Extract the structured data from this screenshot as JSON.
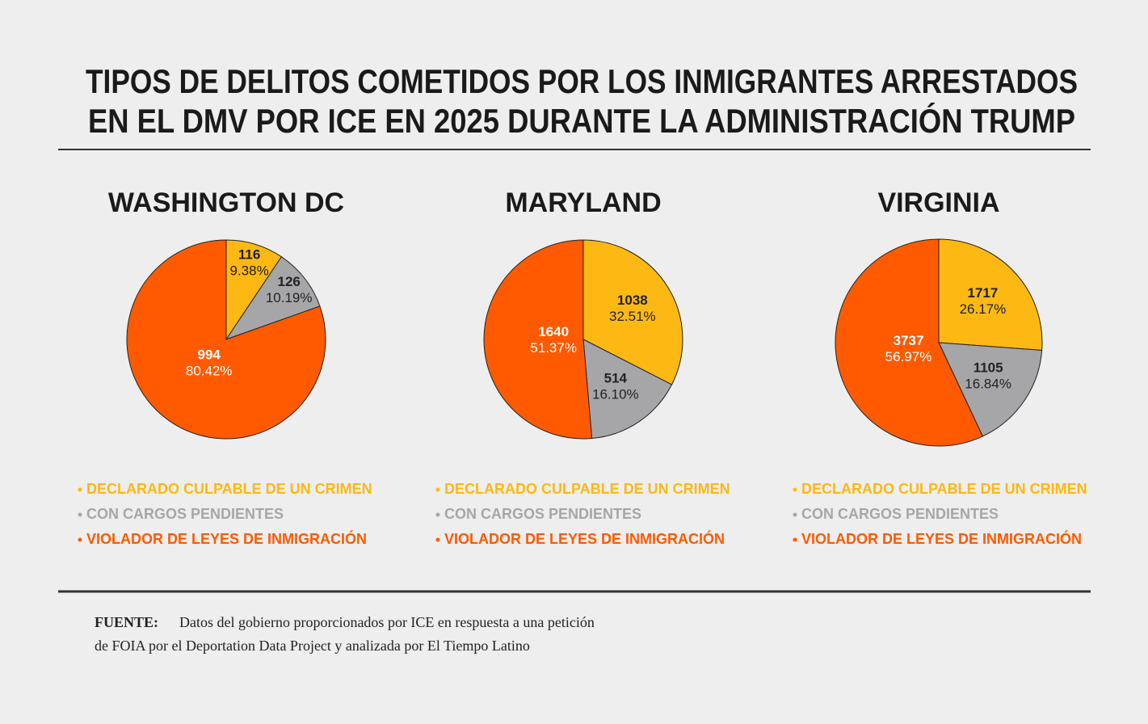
{
  "header": {
    "title": [
      "TIPOS DE DELITOS COMETIDOS POR LOS INMIGRANTES ARRESTADOS",
      "EN EL DMV POR ICE EN 2025 DURANTE LA ADMINISTRACIÓN TRUMP"
    ]
  },
  "chart_data": [
    {
      "type": "pie",
      "title": "WASHINGTON DC",
      "categories": [
        "DECLARADO CULPABLE DE UN CRIMEN",
        "CON CARGOS PENDIENTES",
        "VIOLADOR DE LEYES DE INMIGRACIÓN"
      ],
      "values": [
        116,
        126,
        994
      ],
      "percent_labels": [
        "9.38%",
        "10.19%",
        "80.42%"
      ],
      "colors": [
        "#fdb813",
        "#a6a6a8",
        "#ff5a00"
      ]
    },
    {
      "type": "pie",
      "title": "MARYLAND",
      "categories": [
        "DECLARADO CULPABLE DE UN CRIMEN",
        "CON CARGOS PENDIENTES",
        "VIOLADOR DE LEYES DE INMIGRACIÓN"
      ],
      "values": [
        1038,
        514,
        1640
      ],
      "percent_labels": [
        "32.51%",
        "16.10%",
        "51.37%"
      ],
      "colors": [
        "#fdb813",
        "#a6a6a8",
        "#ff5a00"
      ]
    },
    {
      "type": "pie",
      "title": "VIRGINIA",
      "categories": [
        "DECLARADO CULPABLE DE UN CRIMEN",
        "CON CARGOS PENDIENTES",
        "VIOLADOR DE LEYES DE INMIGRACIÓN"
      ],
      "values": [
        1717,
        1105,
        3737
      ],
      "percent_labels": [
        "26.17%",
        "16.84%",
        "56.97%"
      ],
      "colors": [
        "#fdb813",
        "#a6a6a8",
        "#ff5a00"
      ]
    }
  ],
  "source": {
    "label": "FUENTE:",
    "lines": [
      "Datos del gobierno proporcionados por ICE en respuesta a una petición",
      "de FOIA por el Deportation Data Project y analizada por El Tiempo Latino"
    ]
  }
}
